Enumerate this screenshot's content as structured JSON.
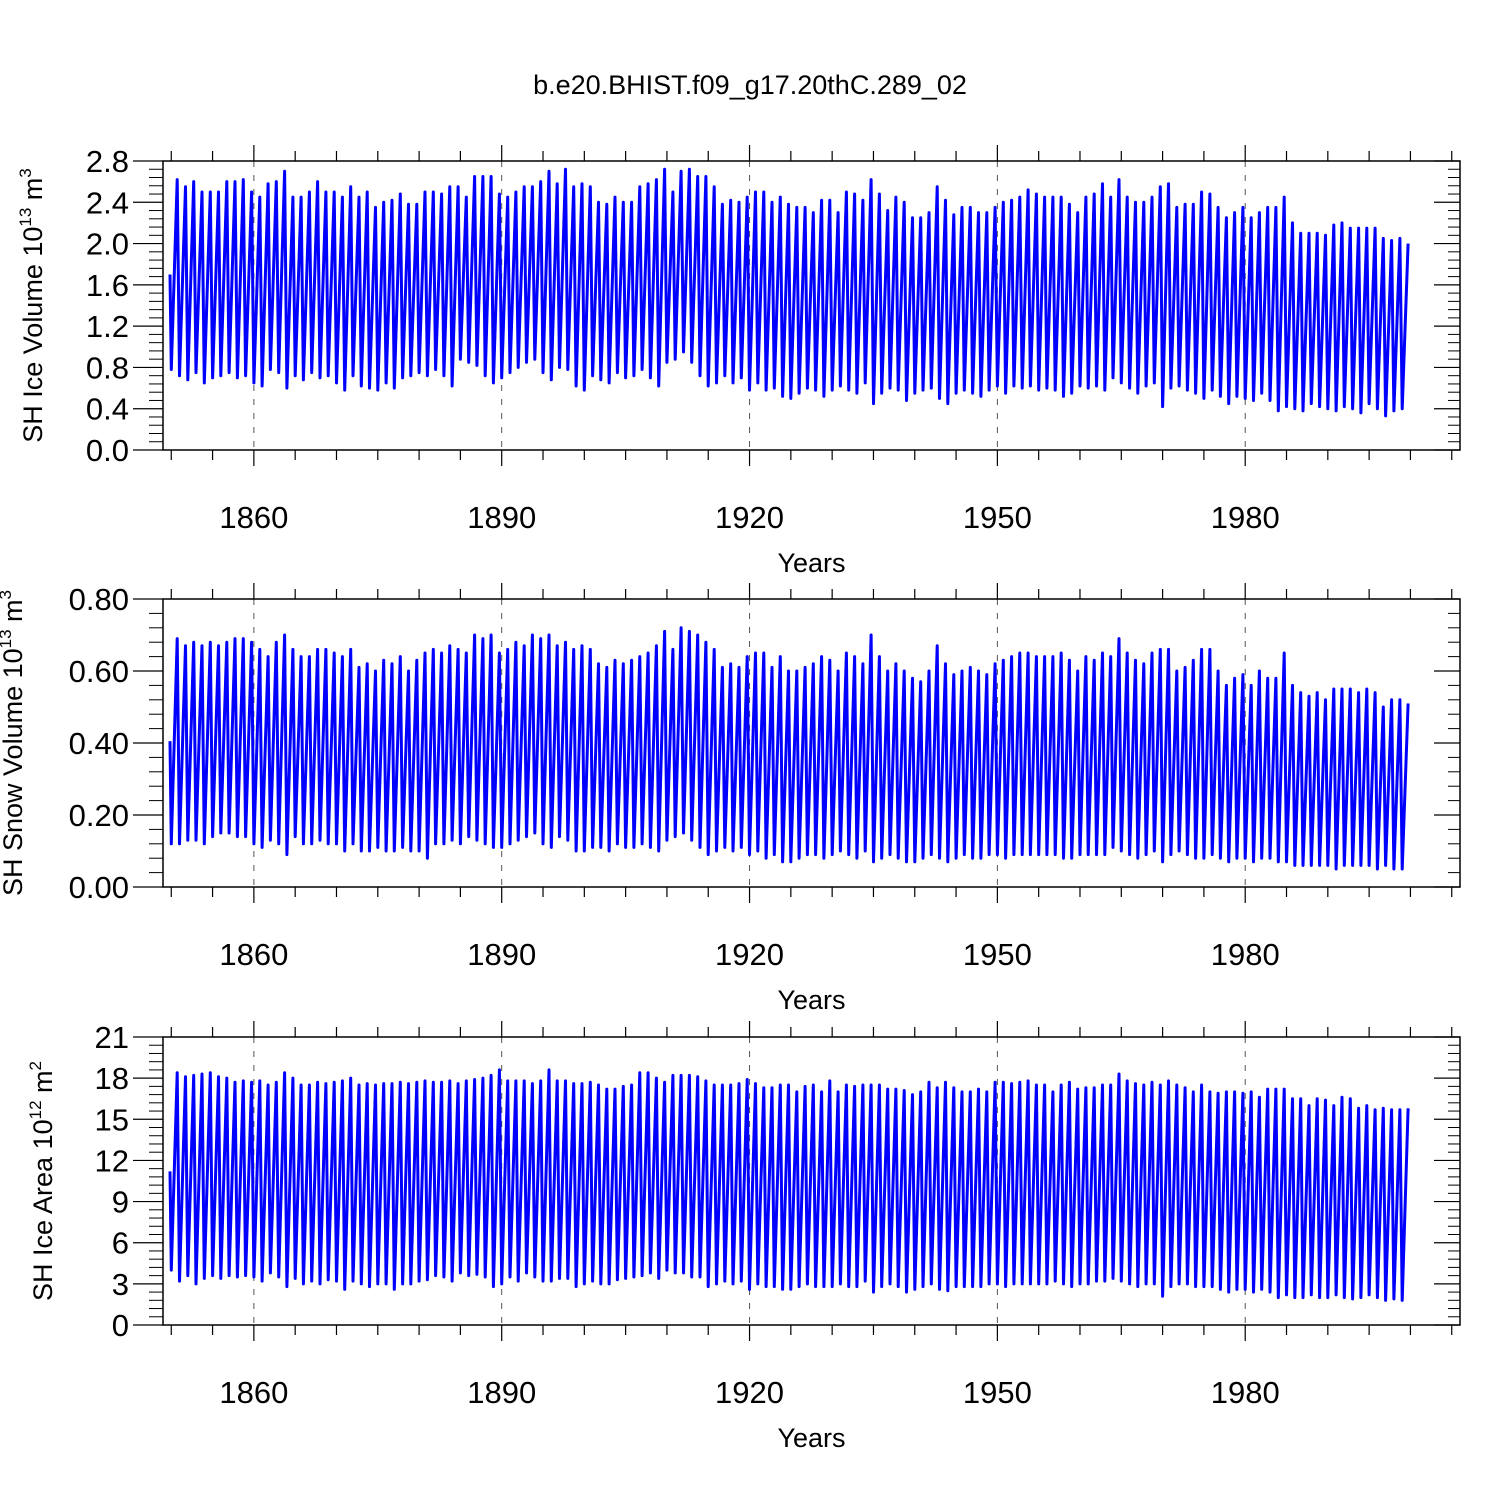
{
  "title": "b.e20.BHIST.f09_g17.20thC.289_02",
  "colors": {
    "series": "#0000ff",
    "axis": "#000000",
    "grid": "#555555"
  },
  "chart_data": [
    {
      "type": "line",
      "title": "b.e20.BHIST.f09_g17.20thC.289_02",
      "xlabel": "Years",
      "ylabel": {
        "text": "SH Ice Volume 10",
        "exp": "13",
        "unit": " m",
        "unit_exp": "3"
      },
      "xlim": [
        1849,
        2006
      ],
      "ylim": [
        0.0,
        2.8
      ],
      "xticks": [
        1860,
        1890,
        1920,
        1950,
        1980
      ],
      "xtick_labels": [
        "1860",
        "1890",
        "1920",
        "1950",
        "1980"
      ],
      "yticks": [
        0.0,
        0.4,
        0.8,
        1.2,
        1.6,
        2.0,
        2.4,
        2.8
      ],
      "ytick_labels": [
        "0.0",
        "0.4",
        "0.8",
        "1.2",
        "1.6",
        "2.0",
        "2.4",
        "2.8"
      ],
      "grid": "vertical dashed at major x ticks",
      "series": [
        {
          "x_start_year": 1850,
          "annual_max": [
            2.62,
            2.55,
            2.6,
            2.5,
            2.5,
            2.5,
            2.6,
            2.6,
            2.62,
            2.5,
            2.45,
            2.58,
            2.6,
            2.7,
            2.45,
            2.45,
            2.5,
            2.6,
            2.5,
            2.5,
            2.45,
            2.55,
            2.45,
            2.5,
            2.35,
            2.4,
            2.42,
            2.48,
            2.38,
            2.38,
            2.5,
            2.5,
            2.48,
            2.55,
            2.55,
            2.45,
            2.65,
            2.65,
            2.65,
            2.48,
            2.45,
            2.5,
            2.55,
            2.55,
            2.6,
            2.7,
            2.58,
            2.72,
            2.55,
            2.58,
            2.55,
            2.4,
            2.38,
            2.45,
            2.4,
            2.4,
            2.55,
            2.58,
            2.62,
            2.72,
            2.5,
            2.7,
            2.72,
            2.65,
            2.65,
            2.55,
            2.38,
            2.42,
            2.4,
            2.45,
            2.5,
            2.5,
            2.4,
            2.45,
            2.38,
            2.35,
            2.35,
            2.3,
            2.42,
            2.42,
            2.3,
            2.5,
            2.48,
            2.42,
            2.62,
            2.48,
            2.32,
            2.45,
            2.4,
            2.25,
            2.25,
            2.3,
            2.55,
            2.42,
            2.28,
            2.35,
            2.35,
            2.3,
            2.3,
            2.35,
            2.4,
            2.42,
            2.45,
            2.52,
            2.48,
            2.45,
            2.45,
            2.45,
            2.38,
            2.3,
            2.45,
            2.48,
            2.58,
            2.45,
            2.62,
            2.45,
            2.4,
            2.4,
            2.45,
            2.55,
            2.58,
            2.35,
            2.38,
            2.38,
            2.5,
            2.48,
            2.35,
            2.25,
            2.3,
            2.35,
            2.25,
            2.3,
            2.35,
            2.35,
            2.45,
            2.2,
            2.1,
            2.1,
            2.1,
            2.08,
            2.18,
            2.2,
            2.15,
            2.15,
            2.15,
            2.15,
            2.05,
            2.03,
            2.05,
            2.0
          ],
          "annual_min": [
            0.78,
            0.72,
            0.68,
            0.75,
            0.65,
            0.7,
            0.72,
            0.75,
            0.7,
            0.72,
            0.65,
            0.62,
            0.78,
            0.75,
            0.6,
            0.72,
            0.68,
            0.75,
            0.7,
            0.72,
            0.65,
            0.58,
            0.72,
            0.62,
            0.6,
            0.58,
            0.65,
            0.6,
            0.7,
            0.72,
            0.75,
            0.72,
            0.78,
            0.72,
            0.62,
            0.88,
            0.85,
            0.82,
            0.72,
            0.65,
            0.7,
            0.75,
            0.8,
            0.85,
            0.88,
            0.75,
            0.68,
            0.8,
            0.78,
            0.62,
            0.58,
            0.72,
            0.68,
            0.65,
            0.75,
            0.7,
            0.72,
            0.78,
            0.7,
            0.62,
            0.85,
            0.88,
            0.95,
            0.85,
            0.72,
            0.62,
            0.65,
            0.72,
            0.65,
            0.7,
            0.58,
            0.65,
            0.58,
            0.6,
            0.52,
            0.5,
            0.55,
            0.6,
            0.58,
            0.52,
            0.58,
            0.62,
            0.58,
            0.55,
            0.65,
            0.45,
            0.55,
            0.6,
            0.58,
            0.48,
            0.55,
            0.58,
            0.6,
            0.5,
            0.45,
            0.55,
            0.58,
            0.55,
            0.52,
            0.58,
            0.62,
            0.55,
            0.62,
            0.6,
            0.62,
            0.58,
            0.6,
            0.58,
            0.52,
            0.55,
            0.62,
            0.6,
            0.62,
            0.58,
            0.7,
            0.65,
            0.6,
            0.55,
            0.62,
            0.65,
            0.42,
            0.6,
            0.62,
            0.58,
            0.55,
            0.5,
            0.58,
            0.52,
            0.45,
            0.52,
            0.5,
            0.48,
            0.55,
            0.48,
            0.38,
            0.42,
            0.4,
            0.38,
            0.45,
            0.42,
            0.4,
            0.38,
            0.42,
            0.4,
            0.36,
            0.45,
            0.4,
            0.33,
            0.38,
            0.4
          ]
        }
      ]
    },
    {
      "type": "line",
      "xlabel": "Years",
      "ylabel": {
        "text": "SH Snow Volume 10",
        "exp": "13",
        "unit": " m",
        "unit_exp": "3"
      },
      "xlim": [
        1849,
        2006
      ],
      "ylim": [
        0.0,
        0.8
      ],
      "xticks": [
        1860,
        1890,
        1920,
        1950,
        1980
      ],
      "xtick_labels": [
        "1860",
        "1890",
        "1920",
        "1950",
        "1980"
      ],
      "yticks": [
        0.0,
        0.2,
        0.4,
        0.6,
        0.8
      ],
      "ytick_labels": [
        "0.00",
        "0.20",
        "0.40",
        "0.60",
        "0.80"
      ],
      "grid": "vertical dashed at major x ticks",
      "series": [
        {
          "x_start_year": 1850,
          "annual_max": [
            0.69,
            0.67,
            0.68,
            0.67,
            0.68,
            0.67,
            0.68,
            0.69,
            0.69,
            0.68,
            0.66,
            0.64,
            0.68,
            0.7,
            0.66,
            0.64,
            0.64,
            0.66,
            0.66,
            0.65,
            0.64,
            0.66,
            0.61,
            0.62,
            0.6,
            0.63,
            0.62,
            0.64,
            0.6,
            0.63,
            0.65,
            0.66,
            0.65,
            0.67,
            0.66,
            0.65,
            0.7,
            0.69,
            0.7,
            0.65,
            0.66,
            0.68,
            0.67,
            0.7,
            0.69,
            0.7,
            0.67,
            0.68,
            0.66,
            0.67,
            0.66,
            0.62,
            0.61,
            0.63,
            0.62,
            0.63,
            0.64,
            0.65,
            0.67,
            0.71,
            0.66,
            0.72,
            0.71,
            0.7,
            0.68,
            0.66,
            0.61,
            0.62,
            0.61,
            0.64,
            0.65,
            0.65,
            0.61,
            0.64,
            0.6,
            0.6,
            0.61,
            0.62,
            0.64,
            0.63,
            0.6,
            0.65,
            0.64,
            0.62,
            0.7,
            0.64,
            0.6,
            0.62,
            0.6,
            0.58,
            0.57,
            0.6,
            0.67,
            0.62,
            0.59,
            0.6,
            0.61,
            0.6,
            0.59,
            0.62,
            0.63,
            0.64,
            0.65,
            0.65,
            0.64,
            0.64,
            0.64,
            0.65,
            0.63,
            0.6,
            0.64,
            0.63,
            0.65,
            0.64,
            0.69,
            0.65,
            0.63,
            0.62,
            0.65,
            0.66,
            0.66,
            0.6,
            0.61,
            0.63,
            0.66,
            0.66,
            0.6,
            0.56,
            0.58,
            0.59,
            0.56,
            0.6,
            0.58,
            0.58,
            0.65,
            0.56,
            0.54,
            0.53,
            0.54,
            0.52,
            0.55,
            0.55,
            0.55,
            0.54,
            0.55,
            0.54,
            0.5,
            0.52,
            0.52,
            0.51
          ],
          "annual_min": [
            0.12,
            0.12,
            0.13,
            0.13,
            0.12,
            0.14,
            0.15,
            0.15,
            0.14,
            0.14,
            0.12,
            0.11,
            0.13,
            0.12,
            0.09,
            0.14,
            0.12,
            0.12,
            0.13,
            0.12,
            0.12,
            0.1,
            0.12,
            0.1,
            0.1,
            0.11,
            0.1,
            0.1,
            0.11,
            0.1,
            0.1,
            0.08,
            0.12,
            0.12,
            0.13,
            0.12,
            0.14,
            0.13,
            0.12,
            0.11,
            0.11,
            0.12,
            0.13,
            0.14,
            0.15,
            0.12,
            0.11,
            0.14,
            0.13,
            0.1,
            0.1,
            0.11,
            0.11,
            0.1,
            0.12,
            0.11,
            0.11,
            0.12,
            0.11,
            0.1,
            0.13,
            0.14,
            0.15,
            0.13,
            0.11,
            0.09,
            0.1,
            0.11,
            0.1,
            0.11,
            0.09,
            0.1,
            0.08,
            0.09,
            0.07,
            0.07,
            0.08,
            0.09,
            0.09,
            0.08,
            0.09,
            0.1,
            0.09,
            0.08,
            0.1,
            0.07,
            0.08,
            0.09,
            0.08,
            0.07,
            0.07,
            0.08,
            0.09,
            0.08,
            0.07,
            0.08,
            0.09,
            0.08,
            0.08,
            0.09,
            0.09,
            0.08,
            0.09,
            0.09,
            0.09,
            0.09,
            0.09,
            0.09,
            0.08,
            0.08,
            0.09,
            0.09,
            0.09,
            0.09,
            0.11,
            0.1,
            0.09,
            0.08,
            0.09,
            0.1,
            0.07,
            0.09,
            0.1,
            0.09,
            0.08,
            0.08,
            0.09,
            0.08,
            0.07,
            0.08,
            0.08,
            0.07,
            0.08,
            0.08,
            0.07,
            0.07,
            0.06,
            0.06,
            0.06,
            0.06,
            0.06,
            0.05,
            0.06,
            0.06,
            0.06,
            0.06,
            0.05,
            0.06,
            0.05,
            0.05
          ]
        }
      ]
    },
    {
      "type": "line",
      "xlabel": "Years",
      "ylabel": {
        "text": "SH Ice Area 10",
        "exp": "12",
        "unit": " m",
        "unit_exp": "2"
      },
      "xlim": [
        1849,
        2006
      ],
      "ylim": [
        0,
        21
      ],
      "xticks": [
        1860,
        1890,
        1920,
        1950,
        1980
      ],
      "xtick_labels": [
        "1860",
        "1890",
        "1920",
        "1950",
        "1980"
      ],
      "yticks": [
        0,
        3,
        6,
        9,
        12,
        15,
        18,
        21
      ],
      "ytick_labels": [
        "0",
        "3",
        "6",
        "9",
        "12",
        "15",
        "18",
        "21"
      ],
      "grid": "vertical dashed at major x ticks",
      "series": [
        {
          "x_start_year": 1850,
          "annual_max": [
            18.4,
            18.1,
            18.2,
            18.3,
            18.4,
            18.1,
            18.0,
            17.7,
            17.8,
            17.7,
            17.8,
            17.5,
            17.7,
            18.4,
            18.0,
            17.5,
            17.5,
            17.7,
            17.6,
            17.7,
            17.8,
            18.0,
            17.5,
            17.6,
            17.5,
            17.6,
            17.6,
            17.7,
            17.6,
            17.7,
            17.8,
            17.7,
            17.7,
            17.8,
            17.6,
            17.8,
            17.9,
            18.0,
            18.2,
            18.6,
            17.8,
            17.8,
            17.8,
            17.6,
            17.8,
            18.6,
            17.8,
            17.8,
            17.6,
            17.6,
            17.7,
            17.5,
            17.2,
            17.2,
            17.4,
            17.5,
            18.4,
            18.4,
            18.0,
            17.7,
            18.2,
            18.2,
            18.2,
            18.1,
            17.8,
            17.5,
            17.5,
            17.5,
            17.6,
            17.9,
            17.6,
            17.3,
            17.3,
            17.5,
            17.5,
            17.0,
            17.4,
            17.5,
            17.0,
            17.8,
            17.0,
            17.5,
            17.4,
            17.5,
            17.5,
            17.5,
            17.2,
            17.2,
            17.1,
            16.8,
            17.0,
            17.7,
            17.3,
            17.7,
            17.3,
            17.0,
            17.0,
            17.2,
            17.0,
            17.7,
            17.7,
            17.6,
            17.7,
            17.8,
            17.5,
            17.5,
            17.0,
            17.5,
            17.7,
            17.2,
            17.3,
            17.3,
            17.5,
            17.5,
            18.3,
            17.8,
            17.6,
            17.5,
            17.7,
            17.5,
            17.8,
            17.5,
            17.3,
            17.0,
            17.5,
            17.0,
            16.9,
            17.0,
            17.0,
            16.9,
            17.0,
            16.6,
            17.2,
            17.2,
            17.2,
            16.5,
            16.5,
            16.0,
            16.5,
            16.4,
            16.0,
            16.6,
            16.5,
            15.8,
            16.0,
            15.7,
            15.8,
            15.7,
            15.7,
            15.8
          ],
          "annual_min": [
            4.0,
            3.2,
            3.6,
            3.0,
            3.4,
            3.6,
            3.4,
            3.6,
            3.5,
            3.6,
            3.5,
            3.2,
            3.8,
            3.5,
            2.8,
            3.4,
            3.0,
            3.2,
            3.0,
            3.3,
            3.2,
            2.6,
            3.2,
            3.0,
            2.8,
            3.0,
            3.0,
            2.6,
            3.0,
            3.0,
            3.2,
            3.3,
            3.6,
            3.5,
            3.2,
            3.8,
            3.6,
            3.7,
            3.5,
            2.8,
            3.0,
            3.5,
            3.2,
            3.8,
            3.5,
            3.2,
            3.2,
            3.4,
            3.4,
            2.8,
            3.0,
            3.2,
            3.0,
            3.0,
            3.3,
            3.4,
            3.5,
            3.6,
            3.8,
            3.4,
            4.0,
            3.8,
            3.8,
            3.5,
            3.5,
            2.8,
            3.0,
            3.2,
            3.0,
            3.2,
            2.6,
            3.0,
            2.8,
            2.8,
            2.6,
            2.6,
            2.8,
            3.0,
            2.8,
            2.8,
            2.8,
            3.0,
            2.8,
            2.8,
            3.2,
            2.4,
            2.8,
            3.0,
            2.8,
            2.4,
            2.6,
            2.8,
            3.0,
            2.6,
            2.5,
            2.8,
            2.8,
            2.8,
            2.8,
            3.0,
            3.0,
            2.8,
            3.0,
            3.0,
            3.0,
            3.0,
            3.0,
            3.2,
            3.0,
            2.8,
            3.0,
            3.0,
            3.2,
            3.2,
            3.4,
            3.2,
            3.0,
            2.8,
            3.0,
            3.0,
            2.1,
            2.8,
            3.0,
            3.0,
            2.8,
            2.8,
            2.8,
            2.6,
            2.4,
            2.6,
            2.6,
            2.4,
            2.6,
            2.4,
            2.0,
            2.2,
            2.0,
            2.0,
            2.2,
            2.0,
            2.0,
            2.2,
            2.0,
            1.9,
            2.0,
            2.2,
            2.0,
            1.8,
            1.9,
            1.8
          ]
        }
      ]
    }
  ]
}
